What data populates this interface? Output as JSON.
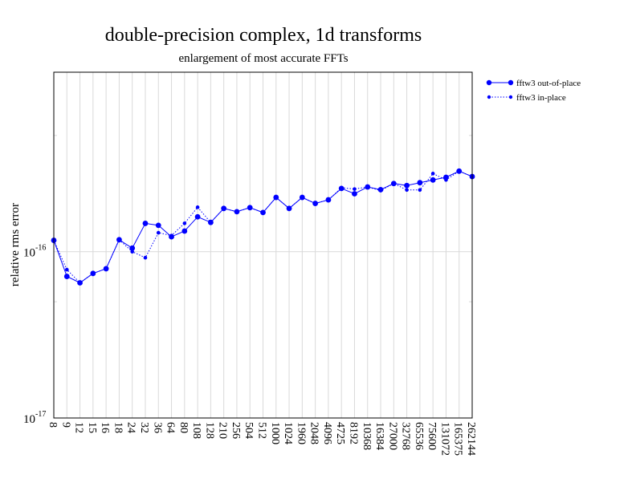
{
  "chart_data": {
    "type": "line",
    "title": "double-precision complex, 1d transforms",
    "subtitle": "enlargement of most accurate FFTs",
    "xlabel": "",
    "ylabel": "relative rms error",
    "y_scale": "log",
    "ylim": [
      1e-17,
      1.2e-15
    ],
    "y_ticks": [
      {
        "base": "10",
        "exponent": "-17",
        "value": 1e-17
      },
      {
        "base": "10",
        "exponent": "-16",
        "value": 1e-16
      }
    ],
    "grid": "vertical",
    "legend_position": "top-right, outside plot",
    "categories": [
      "8",
      "9",
      "12",
      "15",
      "16",
      "18",
      "24",
      "32",
      "36",
      "64",
      "80",
      "108",
      "128",
      "210",
      "256",
      "504",
      "512",
      "1000",
      "1024",
      "1960",
      "2048",
      "4096",
      "4725",
      "8192",
      "10368",
      "16384",
      "27000",
      "32768",
      "65536",
      "75600",
      "131072",
      "165375",
      "262144"
    ],
    "series": [
      {
        "name": "fftw3 out-of-place",
        "style": "solid",
        "color": "#0000ff",
        "values": [
          1.17e-16,
          7.1e-17,
          6.5e-17,
          7.4e-17,
          7.9e-17,
          1.18e-16,
          1.05e-16,
          1.48e-16,
          1.44e-16,
          1.23e-16,
          1.33e-16,
          1.62e-16,
          1.5e-16,
          1.82e-16,
          1.74e-16,
          1.84e-16,
          1.72e-16,
          2.12e-16,
          1.82e-16,
          2.12e-16,
          1.95e-16,
          2.05e-16,
          2.4e-16,
          2.23e-16,
          2.45e-16,
          2.36e-16,
          2.57e-16,
          2.5e-16,
          2.6e-16,
          2.7e-16,
          2.8e-16,
          3.05e-16,
          2.83e-16
        ]
      },
      {
        "name": "fftw3 in-place",
        "style": "dotted",
        "color": "#0000ff",
        "values": [
          1.17e-16,
          7.8e-17,
          6.5e-17,
          7.4e-17,
          7.9e-17,
          1.18e-16,
          1e-16,
          9.2e-17,
          1.3e-16,
          1.25e-16,
          1.48e-16,
          1.85e-16,
          1.5e-16,
          1.82e-16,
          1.74e-16,
          1.84e-16,
          1.72e-16,
          2.12e-16,
          1.82e-16,
          2.12e-16,
          1.95e-16,
          2.05e-16,
          2.42e-16,
          2.38e-16,
          2.45e-16,
          2.33e-16,
          2.57e-16,
          2.35e-16,
          2.35e-16,
          2.95e-16,
          2.7e-16,
          3.05e-16,
          2.83e-16
        ]
      }
    ]
  }
}
